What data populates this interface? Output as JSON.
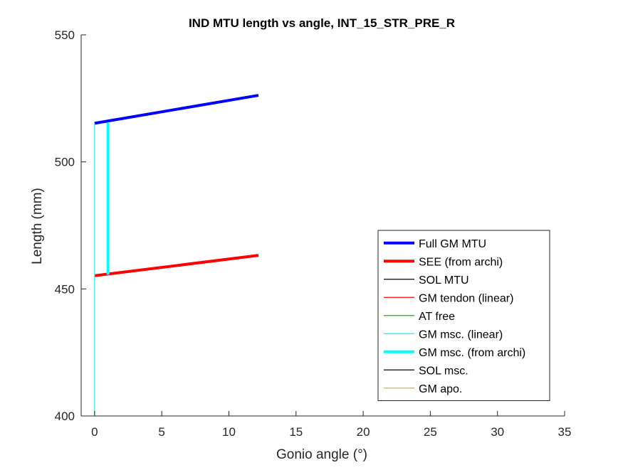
{
  "chart_data": {
    "type": "line",
    "title": "IND MTU length vs angle, INT_15_STR_PRE_R",
    "xlabel": "Gonio angle (°)",
    "ylabel": "Length (mm)",
    "xlim": [
      -1,
      35
    ],
    "ylim": [
      400,
      550
    ],
    "xticks": [
      0,
      5,
      10,
      15,
      20,
      25,
      30,
      35
    ],
    "yticks": [
      400,
      450,
      500,
      550
    ],
    "grid": false,
    "legend_position": "bottom-right",
    "series": [
      {
        "name": "Full GM MTU",
        "color": "#0000ff",
        "line": "thick",
        "x": [
          0,
          12.2
        ],
        "y": [
          515.2,
          526.2
        ]
      },
      {
        "name": "SEE (from archi)",
        "color": "#ff0000",
        "line": "thick",
        "x": [
          0,
          12.2
        ],
        "y": [
          455.2,
          463.2
        ]
      },
      {
        "name": "SOL MTU",
        "color": "#000000",
        "line": "thin",
        "x": [],
        "y": []
      },
      {
        "name": "GM tendon (linear)",
        "color": "#ff0000",
        "line": "thin",
        "x": [],
        "y": []
      },
      {
        "name": "AT free",
        "color": "#00c000",
        "line": "thin",
        "x": [],
        "y": []
      },
      {
        "name": "GM msc. (linear)",
        "color": "#00ffff",
        "line": "thin",
        "x": [
          0,
          0
        ],
        "y": [
          400,
          515.2
        ]
      },
      {
        "name": "GM msc. (from archi)",
        "color": "#00ffff",
        "line": "thick",
        "x": [
          1,
          1
        ],
        "y": [
          455.6,
          515.4
        ]
      },
      {
        "name": "SOL msc.",
        "color": "#000000",
        "line": "thin",
        "x": [],
        "y": []
      },
      {
        "name": "GM apo.",
        "color": "#edb120",
        "line": "thin",
        "x": [],
        "y": []
      }
    ]
  }
}
